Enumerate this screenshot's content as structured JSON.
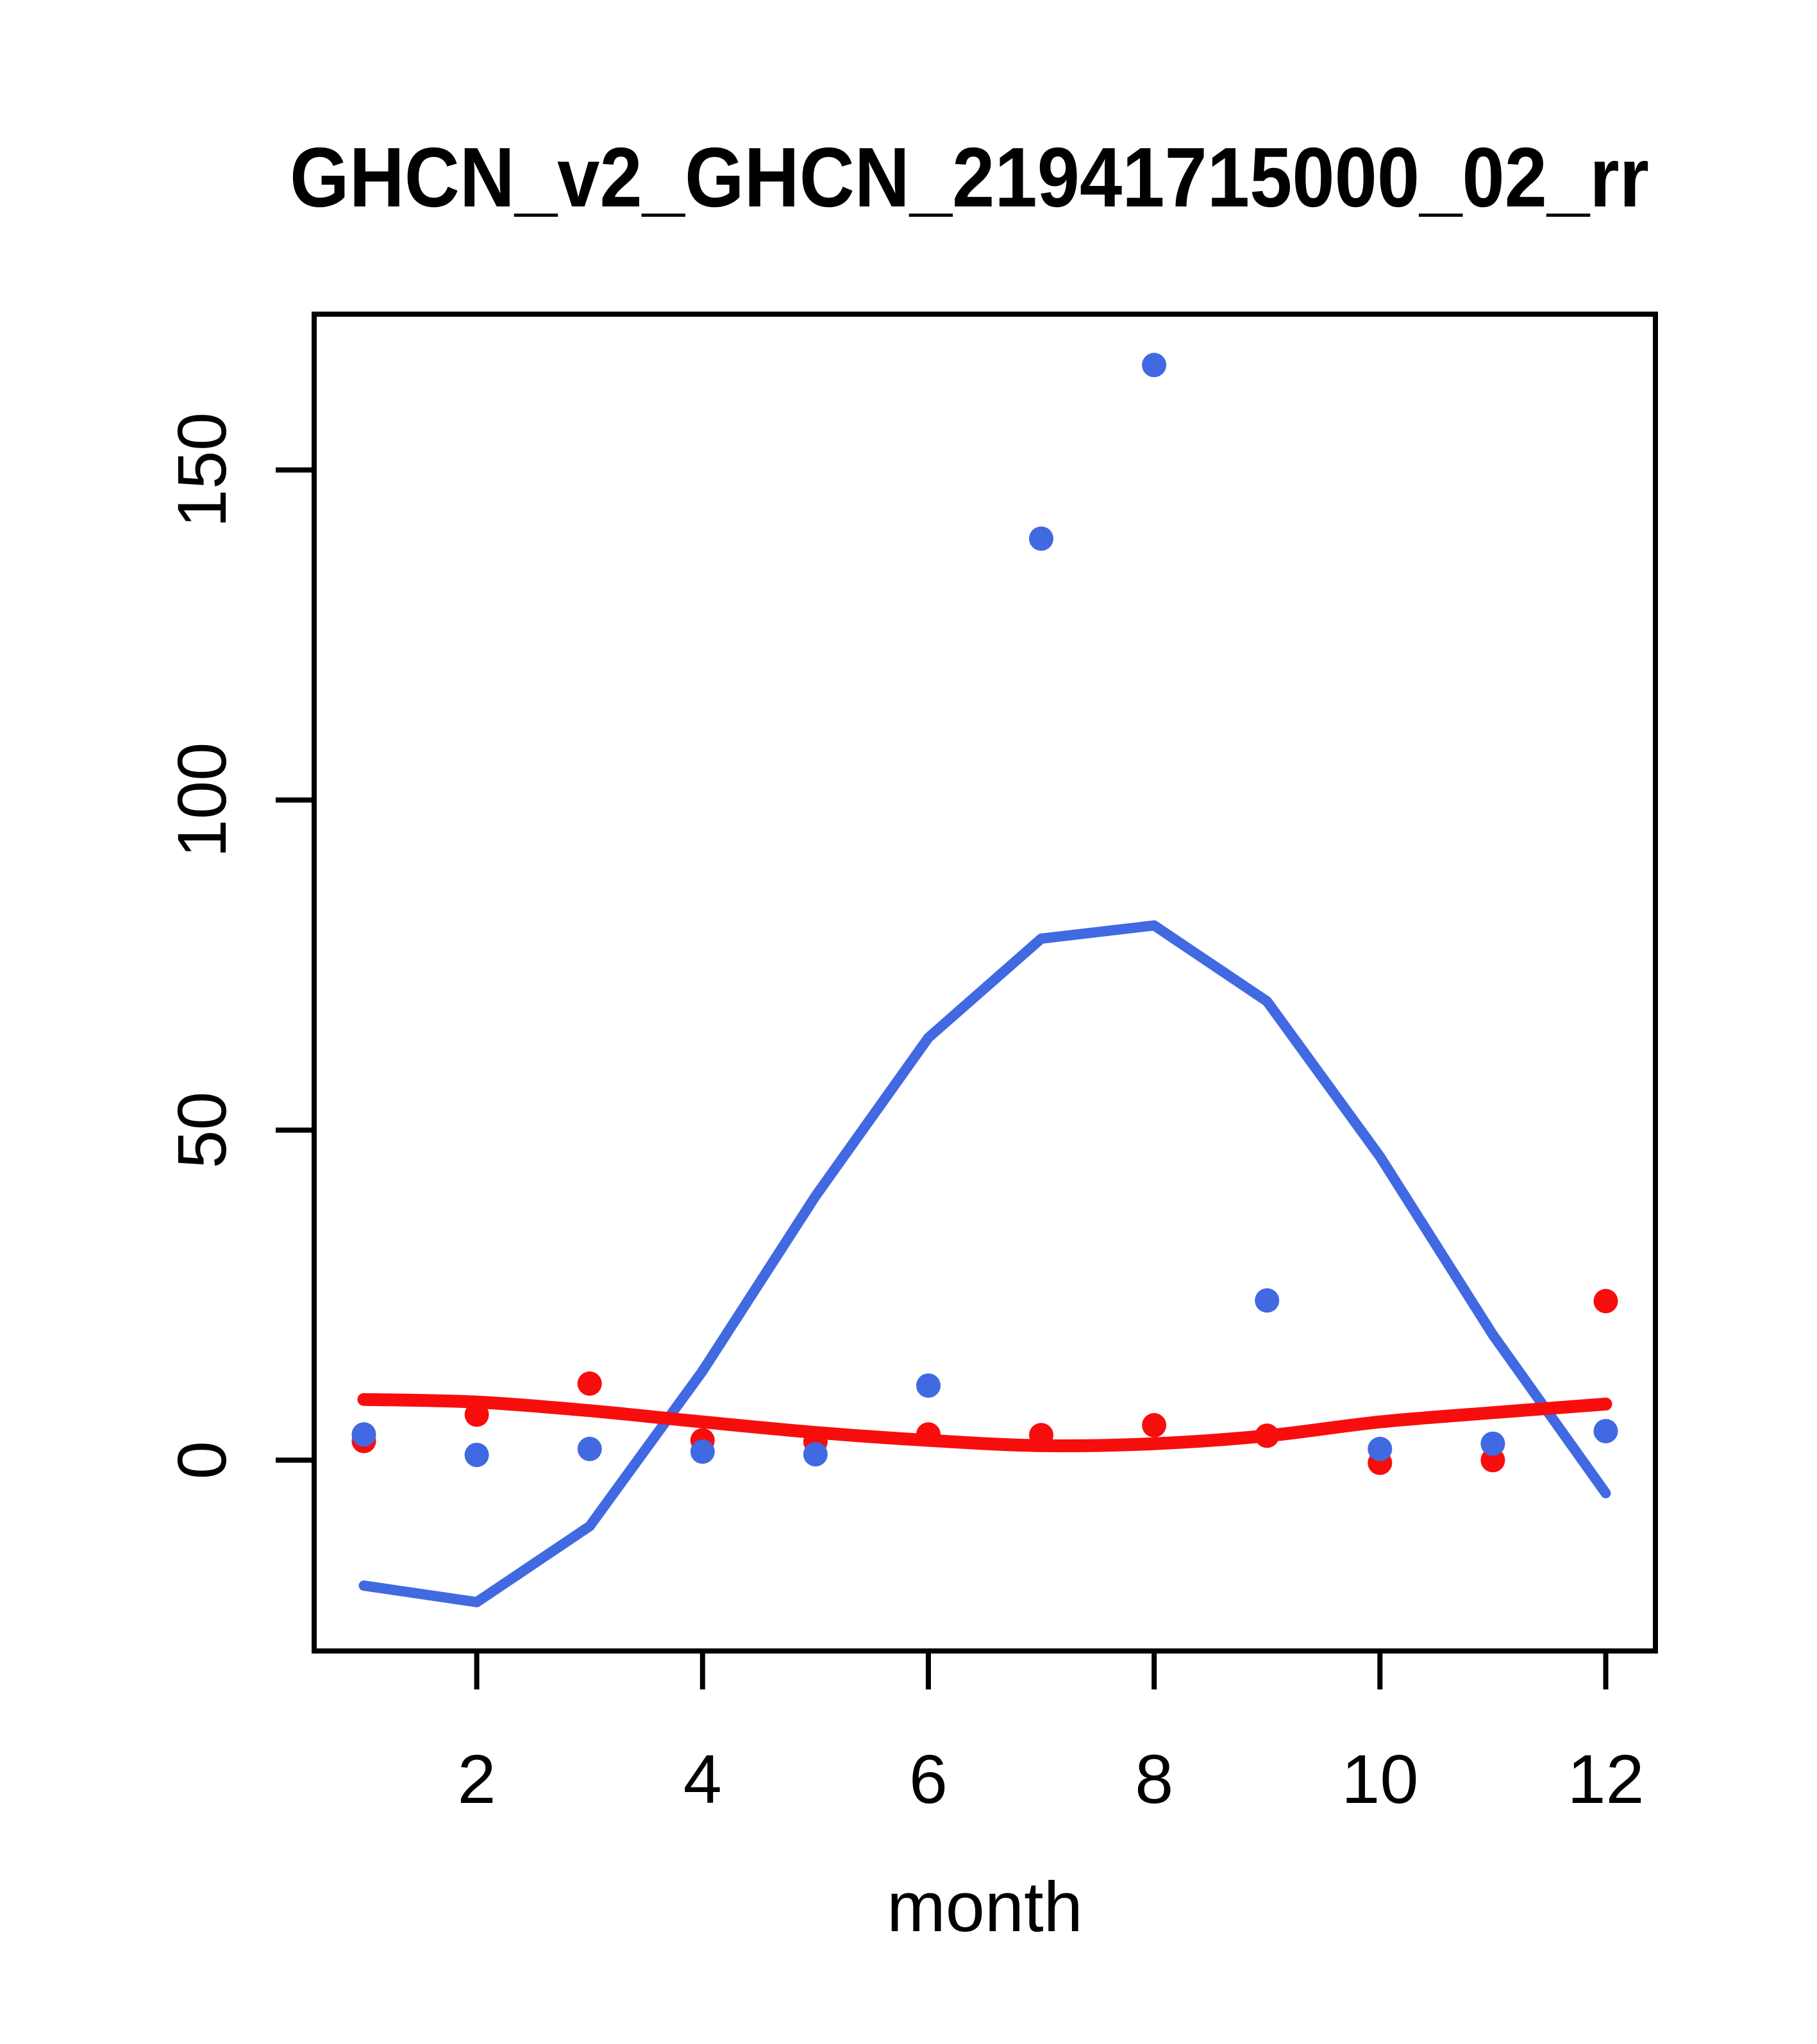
{
  "chart_data": {
    "type": "scatter",
    "title": "GHCN_v2_GHCN_21941715000_02_rr",
    "xlabel": "month",
    "ylabel": "",
    "x": [
      1,
      2,
      3,
      4,
      5,
      6,
      7,
      8,
      9,
      10,
      11,
      12
    ],
    "x_ticks": [
      "2",
      "4",
      "6",
      "8",
      "10",
      "12"
    ],
    "x_tick_values": [
      2,
      4,
      6,
      8,
      10,
      12
    ],
    "y_ticks": [
      "0",
      "50",
      "100",
      "150"
    ],
    "y_tick_values": [
      0,
      50,
      100,
      150
    ],
    "xlim": [
      0.56,
      12.44
    ],
    "ylim": [
      -28.9,
      173.6
    ],
    "grid": "off",
    "legend": "none",
    "colors": {
      "blue": "#4169E1",
      "red": "#F80D0D",
      "axis": "#000000"
    },
    "series": [
      {
        "name": "blue-line",
        "kind": "line",
        "color_key": "blue",
        "values": [
          -19,
          -21.5,
          -10,
          13.5,
          40,
          64,
          79,
          81,
          69.5,
          46,
          19,
          -5
        ]
      },
      {
        "name": "red-smooth-line",
        "kind": "smooth-line",
        "color_key": "red",
        "values": [
          9.2,
          8.8,
          7.5,
          5.8,
          4.2,
          3.0,
          2.2,
          2.5,
          3.7,
          5.8,
          7.2,
          8.5
        ]
      },
      {
        "name": "red-points",
        "kind": "points",
        "color_key": "red",
        "values": [
          2.9,
          6.9,
          11.6,
          3.0,
          2.8,
          3.9,
          3.8,
          5.3,
          3.7,
          -0.4,
          0.0,
          24.1
        ]
      },
      {
        "name": "blue-points",
        "kind": "points",
        "color_key": "blue",
        "values": [
          3.9,
          0.8,
          1.7,
          1.3,
          0.9,
          11.3,
          139.6,
          165.9,
          24.2,
          1.7,
          2.5,
          4.4
        ]
      }
    ]
  }
}
